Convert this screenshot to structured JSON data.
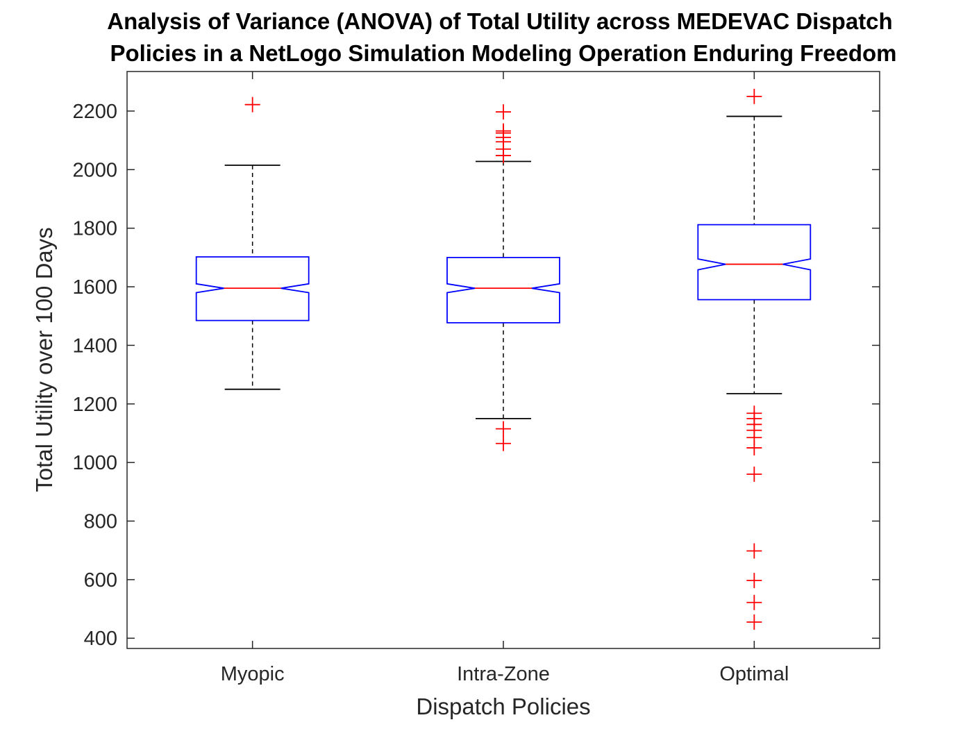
{
  "chart_data": {
    "type": "boxplot",
    "title": [
      "Analysis of Variance (ANOVA) of Total Utility across MEDEVAC Dispatch",
      "Policies in a NetLogo Simulation Modeling Operation Enduring Freedom"
    ],
    "xlabel": "Dispatch Policies",
    "ylabel": "Total Utility over 100 Days",
    "categories": [
      "Myopic",
      "Intra-Zone",
      "Optimal"
    ],
    "ylim": [
      365,
      2335
    ],
    "yticks": [
      400,
      600,
      800,
      1000,
      1200,
      1400,
      1600,
      1800,
      2000,
      2200
    ],
    "notched": true,
    "grid": false,
    "legend": "none",
    "colors": {
      "box": "#0000ff",
      "median": "#ff0000",
      "whisker": "#000000",
      "outlier": "#ff0000",
      "axis": "#262626"
    },
    "boxes": [
      {
        "category": "Myopic",
        "lower_whisker": 1250,
        "q1": 1485,
        "notch_low": 1580,
        "median": 1595,
        "notch_high": 1610,
        "q3": 1702,
        "upper_whisker": 2015,
        "outliers": [
          2222
        ]
      },
      {
        "category": "Intra-Zone",
        "lower_whisker": 1150,
        "q1": 1477,
        "notch_low": 1580,
        "median": 1595,
        "notch_high": 1610,
        "q3": 1700,
        "upper_whisker": 2028,
        "outliers": [
          2197,
          2132,
          2125,
          2110,
          2095,
          2070,
          2048,
          1115,
          1065
        ]
      },
      {
        "category": "Optimal",
        "lower_whisker": 1235,
        "q1": 1556,
        "notch_low": 1658,
        "median": 1677,
        "notch_high": 1695,
        "q3": 1812,
        "upper_whisker": 2182,
        "outliers": [
          2250,
          1168,
          1150,
          1130,
          1110,
          1085,
          1050,
          960,
          698,
          597,
          522,
          455
        ]
      }
    ]
  }
}
